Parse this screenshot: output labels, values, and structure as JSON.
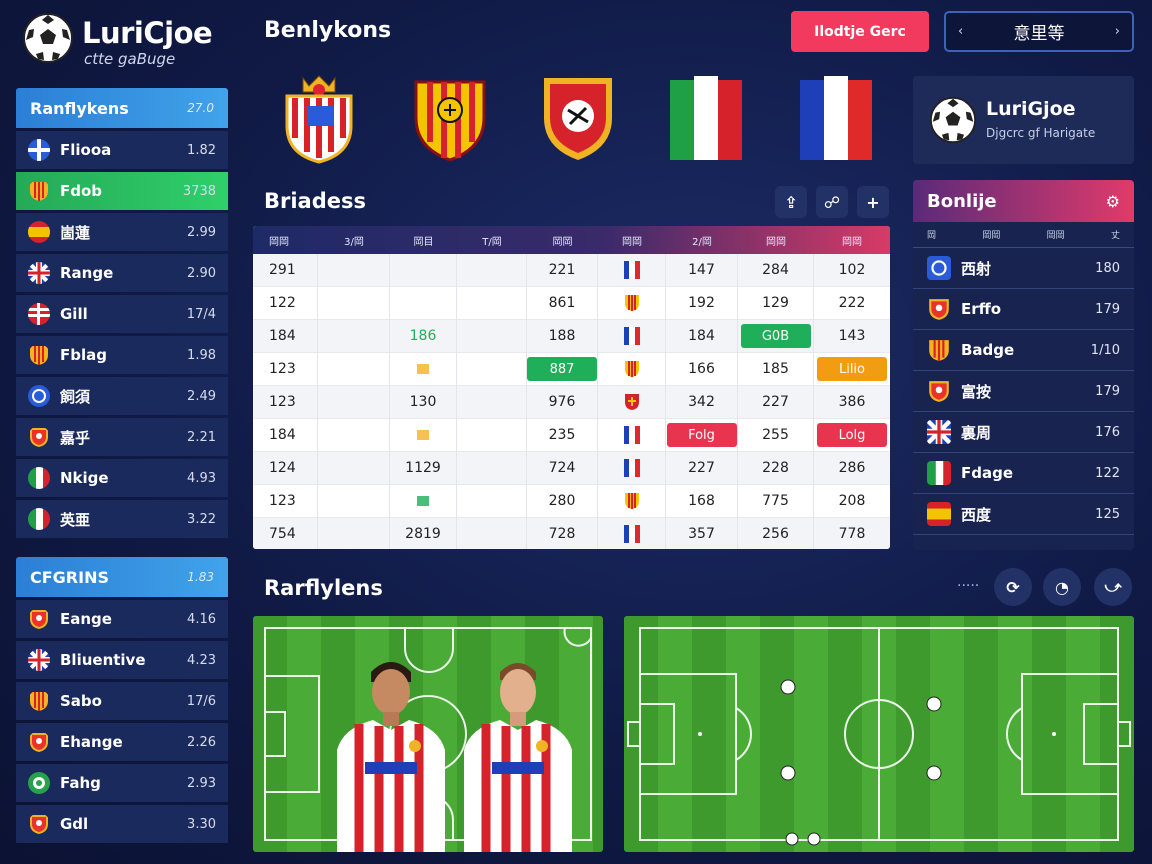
{
  "brand": {
    "name": "LuriCjoe",
    "tagline": "ctte gaBuge"
  },
  "header": {
    "title": "Benlykons",
    "primary_button": "Ilodtje Gerc",
    "pager_label": "意里等",
    "pager_prev": "‹",
    "pager_next": "›"
  },
  "league_card": {
    "title": "LuriGjoe",
    "subtitle": "Djgcrc gf Harigate"
  },
  "sidebar_top": {
    "title": "Ranflykens",
    "value": "27.0",
    "items": [
      {
        "label": "Fliooa",
        "value": "1.82",
        "icon": "cross-flag-icon",
        "color": "#2a5bd8"
      },
      {
        "label": "Fdob",
        "value": "3738",
        "icon": "crest-icon",
        "color": "#f7b21d",
        "active": true
      },
      {
        "label": "崮蓮",
        "value": "2.99",
        "icon": "spain-flag-icon",
        "color": "#e8322a"
      },
      {
        "label": "Range",
        "value": "2.90",
        "icon": "uk-flag-icon",
        "color": "#e8322a"
      },
      {
        "label": "Gill",
        "value": "17/4",
        "icon": "stripes-flag-icon",
        "color": "#e8322a"
      },
      {
        "label": "Fblag",
        "value": "1.98",
        "icon": "crest-icon",
        "color": "#f7b21d"
      },
      {
        "label": "飼須",
        "value": "2.49",
        "icon": "badge-icon",
        "color": "#2a5bd8"
      },
      {
        "label": "嘉乎",
        "value": "2.21",
        "icon": "shield-icon",
        "color": "#e8322a"
      },
      {
        "label": "Nkige",
        "value": "4.93",
        "icon": "italy-flag-icon",
        "color": "#27a14a"
      },
      {
        "label": "英亜",
        "value": "3.22",
        "icon": "italy-flag-icon",
        "color": "#27a14a"
      }
    ]
  },
  "sidebar_bottom": {
    "title": "CFGRINS",
    "value": "1.83",
    "items": [
      {
        "label": "Eange",
        "value": "4.16",
        "icon": "shield-icon",
        "color": "#e8322a"
      },
      {
        "label": "Bliuentive",
        "value": "4.23",
        "icon": "uk-flag-icon",
        "color": "#e8322a"
      },
      {
        "label": "Sabo",
        "value": "17/6",
        "icon": "crest-icon",
        "color": "#f7b21d"
      },
      {
        "label": "Ehange",
        "value": "2.26",
        "icon": "shield-icon",
        "color": "#e8322a"
      },
      {
        "label": "Fahg",
        "value": "2.93",
        "icon": "circle-badge-icon",
        "color": "#27a14a"
      },
      {
        "label": "Gdl",
        "value": "3.30",
        "icon": "shield-icon",
        "color": "#e8322a"
      }
    ]
  },
  "section_table": {
    "title": "Briadess"
  },
  "table": {
    "headers": [
      "岡岡",
      "3/岡",
      "岡目",
      "T/岡",
      "岡岡",
      "岡岡",
      "2/岡",
      "岡岡",
      "岡岡"
    ],
    "rows": [
      [
        "291",
        "",
        "",
        "",
        "221",
        "fr",
        "147",
        "284",
        "102"
      ],
      [
        "122",
        "",
        "",
        "",
        "861",
        "es",
        "192",
        "129",
        "222"
      ],
      [
        "184",
        "",
        "186",
        "",
        "188",
        "fr",
        "184",
        {
          "pill": "G0B",
          "color": "#1fae5a"
        },
        "143"
      ],
      [
        "123",
        "",
        "▪",
        "",
        {
          "pill": "887",
          "color": "#1fae5a"
        },
        "es",
        "166",
        "185",
        {
          "pill": "Lilio",
          "color": "#f29c12"
        }
      ],
      [
        "123",
        "",
        "130",
        "",
        "976",
        "ch",
        "342",
        "227",
        "386"
      ],
      [
        "184",
        "",
        "▪",
        "",
        "235",
        "fr",
        {
          "pill": "Folg",
          "color": "#e8344f"
        },
        "255",
        {
          "pill": "Lolg",
          "color": "#e8344f"
        }
      ],
      [
        "124",
        "",
        "1129",
        "",
        "724",
        "fr",
        "227",
        "228",
        "286"
      ],
      [
        "123",
        "",
        "▪",
        "",
        "280",
        "es",
        "168",
        "775",
        "208"
      ],
      [
        "754",
        "",
        "2819",
        "",
        "728",
        "fr",
        "357",
        "256",
        "778"
      ]
    ]
  },
  "standings": {
    "title": "Bonlije",
    "cols": [
      "岡",
      "岡岡",
      "岡岡",
      "丈"
    ],
    "rows": [
      {
        "label": "西射",
        "value": "180",
        "icon": "badge-icon",
        "color": "#2a5bd8"
      },
      {
        "label": "Erffo",
        "value": "179",
        "icon": "shield-icon",
        "color": "#e8322a"
      },
      {
        "label": "Badge",
        "value": "1/10",
        "icon": "crest-icon",
        "color": "#f7b21d"
      },
      {
        "label": "富按",
        "value": "179",
        "icon": "shield-icon",
        "color": "#e8322a"
      },
      {
        "label": "裏周",
        "value": "176",
        "icon": "uk-flag-icon",
        "color": "#e8322a"
      },
      {
        "label": "Fdage",
        "value": "122",
        "icon": "italy-flag-icon",
        "color": "#27a14a"
      },
      {
        "label": "西度",
        "value": "125",
        "icon": "spain-flag-icon",
        "color": "#e8322a"
      }
    ]
  },
  "section_pitch": {
    "title": "Rarflylens",
    "dots": "·····"
  },
  "colors": {
    "accent": "#f13a5e",
    "panel": "#1a2a5c",
    "header_blue": "#2b7fd6",
    "active_green": "#2fd06a"
  }
}
